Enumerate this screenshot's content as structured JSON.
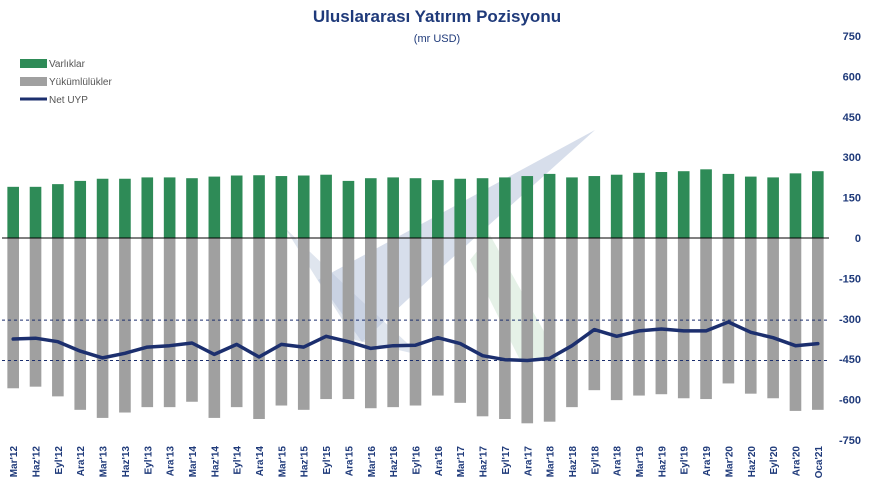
{
  "chart_data": {
    "type": "bar",
    "title": "Uluslararası  Yatırım Pozisyonu",
    "subtitle": "(mr USD)",
    "ylim": [
      -750,
      750
    ],
    "yticks": [
      750,
      600,
      450,
      300,
      150,
      0,
      -150,
      -300,
      -450,
      -600,
      -750
    ],
    "grid": false,
    "reference_lines": [
      -305,
      -455
    ],
    "legend_position": "top-left",
    "categories": [
      "Mar'12",
      "Haz'12",
      "Eyl'12",
      "Ara'12",
      "Mar'13",
      "Haz'13",
      "Eyl'13",
      "Ara'13",
      "Mar'14",
      "Haz'14",
      "Eyl'14",
      "Ara'14",
      "Mar'15",
      "Haz'15",
      "Eyl'15",
      "Ara'15",
      "Mar'16",
      "Haz'16",
      "Eyl'16",
      "Ara'16",
      "Mar'17",
      "Haz'17",
      "Eyl'17",
      "Ara'17",
      "Mar'18",
      "Haz'18",
      "Eyl'18",
      "Ara'18",
      "Mar'19",
      "Haz'19",
      "Eyl'19",
      "Ara'19",
      "Mar'20",
      "Haz'20",
      "Eyl'20",
      "Ara'20",
      "Oca'21"
    ],
    "series": [
      {
        "name": "Varlıklar",
        "kind": "bar",
        "color": "#2e8b57",
        "values": [
          190,
          190,
          200,
          212,
          220,
          220,
          225,
          225,
          222,
          228,
          232,
          233,
          230,
          232,
          235,
          212,
          222,
          225,
          222,
          215,
          220,
          222,
          225,
          230,
          238,
          225,
          230,
          235,
          242,
          245,
          248,
          255,
          238,
          228,
          225,
          240,
          248
        ]
      },
      {
        "name": "Yükümlülükler",
        "kind": "bar",
        "color": "#a0a0a0",
        "values": [
          -558,
          -552,
          -588,
          -638,
          -668,
          -648,
          -628,
          -628,
          -608,
          -668,
          -628,
          -672,
          -622,
          -638,
          -598,
          -598,
          -632,
          -628,
          -622,
          -585,
          -612,
          -662,
          -672,
          -688,
          -682,
          -628,
          -565,
          -602,
          -585,
          -580,
          -595,
          -598,
          -540,
          -578,
          -595,
          -642,
          -638
        ]
      },
      {
        "name": "Net UYP",
        "kind": "line",
        "color": "#1c2f6e",
        "values": [
          -375,
          -372,
          -385,
          -420,
          -445,
          -428,
          -405,
          -400,
          -390,
          -432,
          -395,
          -442,
          -395,
          -405,
          -365,
          -385,
          -410,
          -400,
          -398,
          -370,
          -392,
          -437,
          -452,
          -455,
          -447,
          -400,
          -340,
          -365,
          -345,
          -338,
          -345,
          -345,
          -312,
          -350,
          -370,
          -400,
          -392
        ]
      }
    ]
  }
}
